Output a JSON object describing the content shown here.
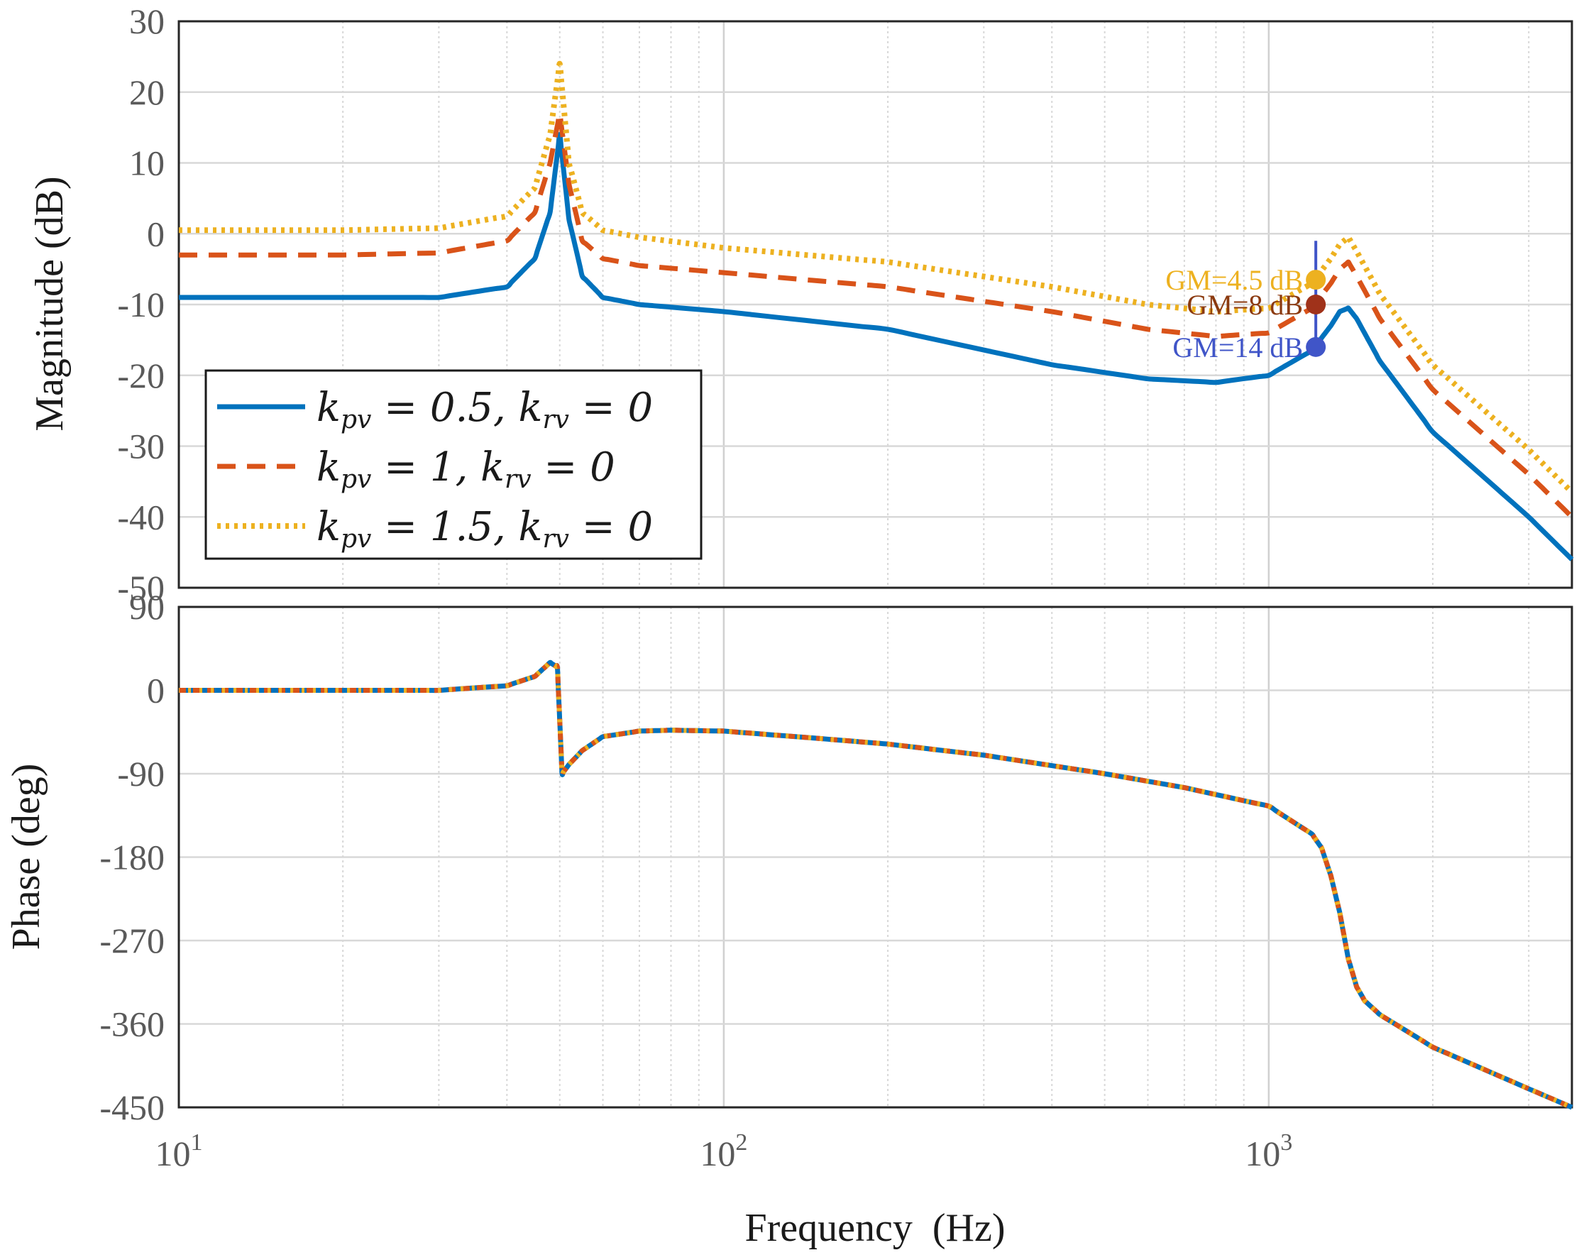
{
  "chart_data": [
    {
      "type": "line",
      "panel": "magnitude",
      "ylabel": "Magnitude (dB)",
      "xscale": "log",
      "xlim": [
        10,
        3600
      ],
      "ylim": [
        -50,
        30
      ],
      "yticks": [
        30,
        20,
        10,
        0,
        -10,
        -20,
        -30,
        -40,
        -50
      ],
      "ytick_labels": [
        "30",
        "20",
        "10",
        "0",
        "-10",
        "-20",
        "-30",
        "-40",
        "-50"
      ],
      "grid": true,
      "legend_position": "bottom-left",
      "series": [
        {
          "name": "k_pv = 0.5, k_rv = 0",
          "color": "#0072BD",
          "style": "solid",
          "x": [
            10,
            20,
            30,
            40,
            45,
            48,
            50,
            52,
            55,
            60,
            70,
            100,
            200,
            400,
            600,
            800,
            1000,
            1200,
            1300,
            1350,
            1400,
            1450,
            1600,
            2000,
            3000,
            3600
          ],
          "y": [
            -9,
            -9,
            -9,
            -7.5,
            -3.5,
            3,
            14,
            2,
            -6,
            -9,
            -10,
            -11,
            -13.5,
            -18.5,
            -20.5,
            -21,
            -20,
            -16.5,
            -13,
            -11,
            -10.5,
            -12,
            -18,
            -28,
            -40,
            -46
          ]
        },
        {
          "name": "k_pv = 1, k_rv = 0",
          "color": "#D95319",
          "style": "dashed",
          "x": [
            10,
            20,
            30,
            40,
            45,
            48,
            50,
            52,
            55,
            60,
            70,
            100,
            200,
            400,
            600,
            800,
            1000,
            1200,
            1300,
            1350,
            1400,
            1450,
            1600,
            2000,
            3000,
            3600
          ],
          "y": [
            -3,
            -3,
            -2.7,
            -1,
            3,
            10,
            17,
            7,
            -1,
            -3.5,
            -4.5,
            -5.5,
            -7.5,
            -11,
            -13.5,
            -14.5,
            -14,
            -10.5,
            -7,
            -5,
            -4,
            -6,
            -12,
            -22,
            -34,
            -40
          ]
        },
        {
          "name": "k_pv = 1.5, k_rv = 0",
          "color": "#EDB120",
          "style": "dotted",
          "x": [
            10,
            20,
            30,
            40,
            45,
            48,
            50,
            52,
            55,
            60,
            70,
            100,
            200,
            400,
            600,
            800,
            1000,
            1200,
            1300,
            1350,
            1400,
            1450,
            1600,
            2000,
            3000,
            3600
          ],
          "y": [
            0.5,
            0.5,
            0.8,
            2.5,
            6.5,
            14,
            24,
            10,
            3,
            0.5,
            -0.5,
            -2,
            -4,
            -7.5,
            -10,
            -11,
            -10.5,
            -7,
            -3.5,
            -1.5,
            -0.5,
            -2.5,
            -8.5,
            -18.5,
            -30.5,
            -36.5
          ]
        }
      ],
      "annotations": [
        {
          "text": "GM=4.5 dB",
          "x": 1220,
          "y": -6.5,
          "color": "#EDB120"
        },
        {
          "text": "GM=8 dB",
          "x": 1220,
          "y": -10,
          "color": "#8B3A0F"
        },
        {
          "text": "GM=14 dB",
          "x": 1220,
          "y": -16,
          "color": "#4055C8"
        }
      ]
    },
    {
      "type": "line",
      "panel": "phase",
      "xlabel": "Frequency  (Hz)",
      "ylabel": "Phase (deg)",
      "xscale": "log",
      "xlim": [
        10,
        3600
      ],
      "ylim": [
        -450,
        90
      ],
      "yticks": [
        90,
        0,
        -90,
        -180,
        -270,
        -360,
        -450
      ],
      "ytick_labels": [
        "90",
        "0",
        "-90",
        "-180",
        "-270",
        "-360",
        "-450"
      ],
      "xtick_base": "10",
      "xtick_exponents": [
        "1",
        "2",
        "3"
      ],
      "grid": true,
      "series_colors": [
        "#0072BD",
        "#D95319",
        "#EDB120"
      ],
      "x": [
        10,
        20,
        30,
        40,
        45,
        48,
        49.5,
        50.5,
        52,
        55,
        60,
        70,
        80,
        100,
        150,
        200,
        300,
        500,
        700,
        1000,
        1200,
        1250,
        1300,
        1350,
        1400,
        1450,
        1500,
        1600,
        2000,
        3000,
        3600
      ],
      "y": [
        0,
        0,
        0,
        5,
        15,
        30,
        25,
        -90,
        -80,
        -65,
        -50,
        -44,
        -43,
        -44,
        -52,
        -58,
        -70,
        -90,
        -105,
        -125,
        -155,
        -170,
        -200,
        -240,
        -290,
        -320,
        -335,
        -350,
        -385,
        -430,
        -450
      ]
    }
  ]
}
